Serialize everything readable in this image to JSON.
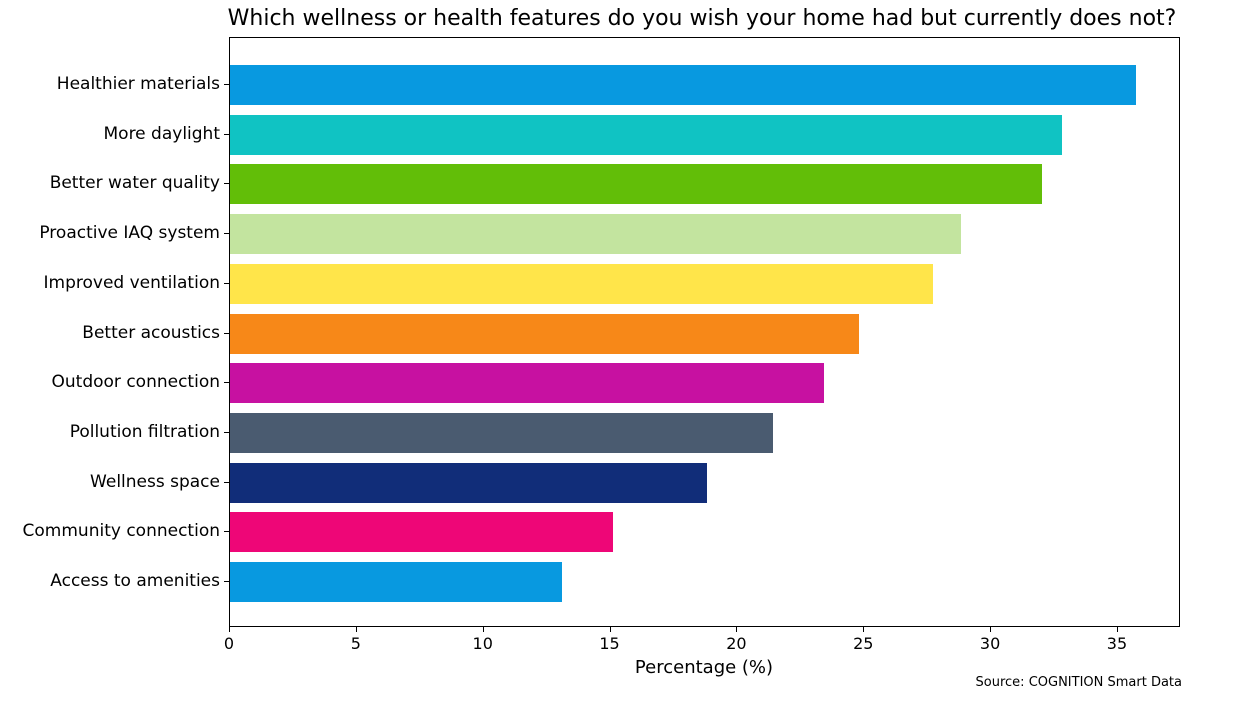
{
  "chart_data": {
    "type": "bar",
    "orientation": "horizontal",
    "title": "Which wellness or health features do you wish your home had but currently does not?",
    "xlabel": "Percentage (%)",
    "ylabel": "",
    "xlim": [
      0,
      37.5
    ],
    "xticks": [
      0,
      5,
      10,
      15,
      20,
      25,
      30,
      35
    ],
    "grid": false,
    "legend": null,
    "categories": [
      "Healthier materials",
      "More daylight",
      "Better water quality",
      "Proactive IAQ system",
      "Improved ventilation",
      "Better acoustics",
      "Outdoor connection",
      "Pollution filtration",
      "Wellness space",
      "Community connection",
      "Access to amenities"
    ],
    "values": [
      35.7,
      32.8,
      32.0,
      28.8,
      27.7,
      24.8,
      23.4,
      21.4,
      18.8,
      15.1,
      13.1
    ],
    "colors": [
      "#0899e0",
      "#10c3c3",
      "#62be08",
      "#c3e49f",
      "#ffe54a",
      "#f78818",
      "#c711a1",
      "#4a5b70",
      "#112d79",
      "#ee0677",
      "#0899e0"
    ],
    "annotation": "Source: COGNITION Smart Data"
  },
  "xtick_labels": [
    "0",
    "5",
    "10",
    "15",
    "20",
    "25",
    "30",
    "35"
  ]
}
